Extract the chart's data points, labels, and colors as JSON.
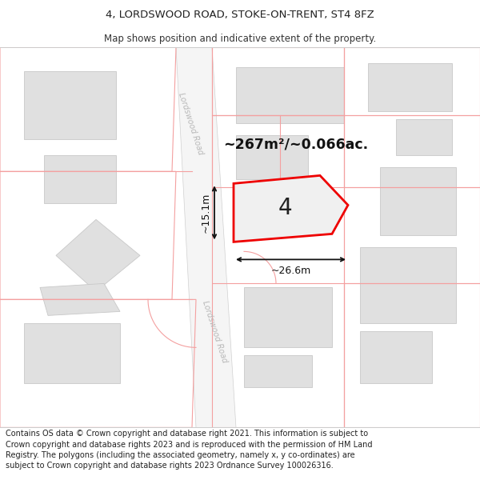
{
  "title_line1": "4, LORDSWOOD ROAD, STOKE-ON-TRENT, ST4 8FZ",
  "title_line2": "Map shows position and indicative extent of the property.",
  "footer_text": "Contains OS data © Crown copyright and database right 2021. This information is subject to Crown copyright and database rights 2023 and is reproduced with the permission of HM Land Registry. The polygons (including the associated geometry, namely x, y co-ordinates) are subject to Crown copyright and database rights 2023 Ordnance Survey 100026316.",
  "bg_color": "#ffffff",
  "map_bg_color": "#ffffff",
  "building_color": "#e0e0e0",
  "building_stroke": "#c8c8c8",
  "pink_line": "#f4a0a0",
  "red_outline": "#ee0000",
  "dim_line_color": "#111111",
  "road_fill": "#f5f5f5",
  "road_edge": "#d8d8d8",
  "label_4": "4",
  "area_label": "~267m²/~0.066ac.",
  "dim_width": "~26.6m",
  "dim_height": "~15.1m",
  "road_label_top": "Lordswood Road",
  "road_label_bot": "Lordswood Road",
  "title_fontsize": 9.5,
  "subtitle_fontsize": 8.5,
  "footer_fontsize": 7.0
}
